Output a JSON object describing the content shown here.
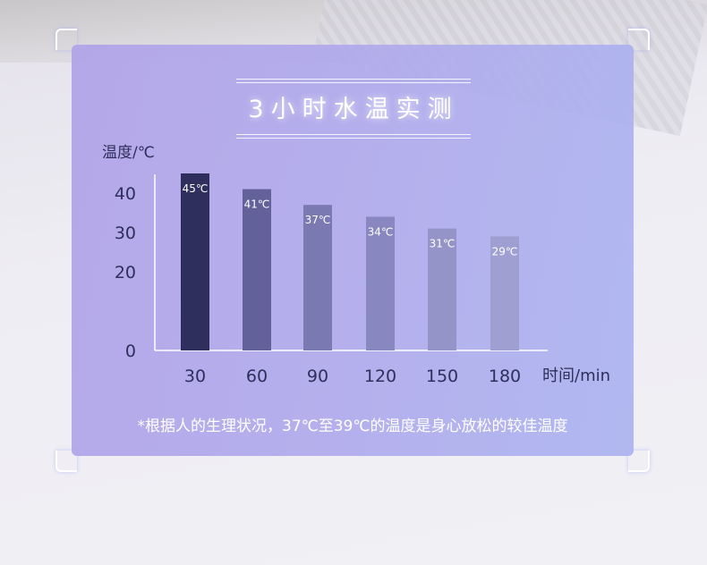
{
  "chart_data": {
    "type": "bar",
    "title": "3小时水温实测",
    "ylabel": "温度/℃",
    "xlabel": "时间/min",
    "categories": [
      "30",
      "60",
      "90",
      "120",
      "150",
      "180"
    ],
    "values": [
      45,
      41,
      37,
      34,
      31,
      29
    ],
    "data_labels": [
      "45℃",
      "41℃",
      "37℃",
      "34℃",
      "31℃",
      "29℃"
    ],
    "yticks": [
      0,
      20,
      30,
      40
    ],
    "ylim": [
      0,
      45
    ],
    "grid": false,
    "bar_colors": [
      "#2e2f5c",
      "#62619a",
      "#7a79b2",
      "#8887bf",
      "#9594c9",
      "#a09fd2"
    ],
    "footnote": "*根据人的生理状况，37℃至39℃的温度是身心放松的较佳温度"
  }
}
